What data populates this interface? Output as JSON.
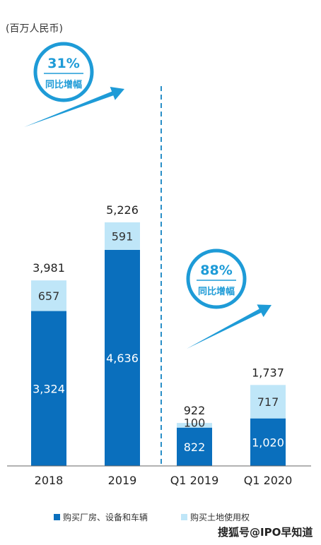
{
  "unit_label": "(百万人民币)",
  "watermark": "搜狐号@IPO早知道",
  "badges": [
    {
      "percent": "31%",
      "label": "同比增幅"
    },
    {
      "percent": "88%",
      "label": "同比增幅"
    }
  ],
  "colors": {
    "dark": "#0a6fbd",
    "light": "#bfe6f8",
    "accent": "#1e9bd7",
    "divider": "#2a8fc7"
  },
  "chart_data": {
    "type": "bar",
    "stacked": true,
    "categories": [
      "2018",
      "2019",
      "Q1 2019",
      "Q1 2020"
    ],
    "series": [
      {
        "name": "购买厂房、设备和车辆",
        "values": [
          3324,
          4636,
          822,
          1020
        ]
      },
      {
        "name": "购买土地使用权",
        "values": [
          657,
          591,
          100,
          717
        ]
      }
    ],
    "value_labels": [
      [
        "3,324",
        "4,636",
        "822",
        "1,020"
      ],
      [
        "657",
        "591",
        "100",
        "717"
      ]
    ],
    "totals": [
      3981,
      5226,
      922,
      1737
    ],
    "total_labels": [
      "3,981",
      "5,226",
      "922",
      "1,737"
    ],
    "legend_position": "bottom"
  }
}
